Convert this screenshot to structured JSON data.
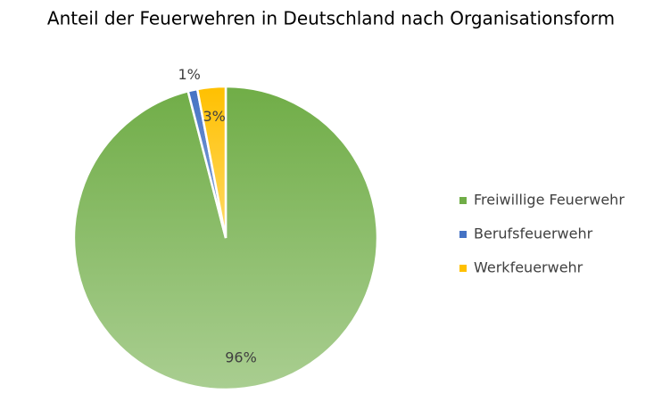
{
  "chart_data": {
    "type": "pie",
    "title": "Anteil der Feuerwehren in Deutschland nach Organisationsform",
    "categories": [
      "Freiwillige Feuerwehr",
      "Berufsfeuerwehr",
      "Werkfeuerwehr"
    ],
    "values": [
      96,
      1,
      3
    ],
    "value_labels": [
      "96%",
      "1%",
      "3%"
    ],
    "colors": [
      "#70ad47",
      "#4472c4",
      "#ffc000"
    ],
    "legend": "right"
  }
}
